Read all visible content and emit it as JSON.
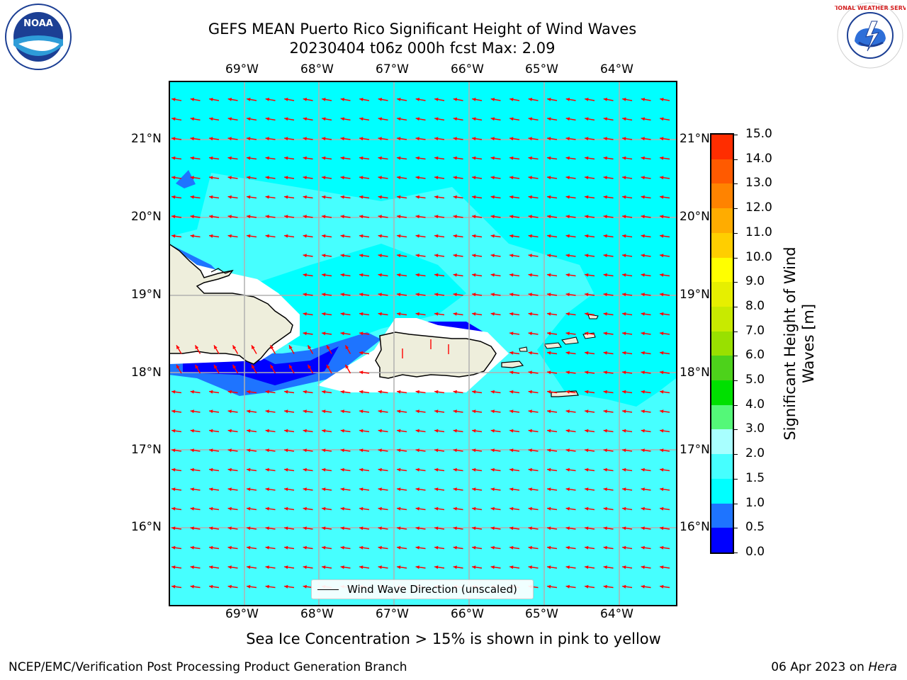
{
  "title_line1": "GEFS MEAN Puerto Rico Significant Height of Wind Waves",
  "title_line2": "20230404 t06z 000h fcst   Max: 2.09",
  "lon_labels": [
    "69°W",
    "68°W",
    "67°W",
    "66°W",
    "65°W",
    "64°W"
  ],
  "lat_labels": [
    "21°N",
    "20°N",
    "19°N",
    "18°N",
    "17°N",
    "16°N"
  ],
  "colorbar": {
    "title_line1": "Significant Height of Wind",
    "title_line2": "Waves [m]",
    "tick_labels": [
      "0.0",
      "0.5",
      "1.0",
      "1.5",
      "2.0",
      "3.0",
      "4.0",
      "5.0",
      "6.0",
      "7.0",
      "8.0",
      "9.0",
      "10.0",
      "11.0",
      "12.0",
      "13.0",
      "14.0",
      "15.0"
    ],
    "colors": [
      "#0000ff",
      "#1e74ff",
      "#00ffff",
      "#46ffff",
      "#a8ffff",
      "#54f878",
      "#00e000",
      "#4dd21b",
      "#99e000",
      "#c8ea00",
      "#e6ef00",
      "#ffff00",
      "#ffce00",
      "#ffac00",
      "#ff8300",
      "#ff5a00",
      "#ff2d00"
    ]
  },
  "legend": {
    "label": "Wind Wave Direction (unscaled)"
  },
  "note": "Sea Ice Concentration > 15% is shown in pink to yellow",
  "footer": {
    "left": "NCEP/EMC/Verification Post Processing Product Generation Branch",
    "right_prefix": "06 Apr 2023 on ",
    "right_machine": "Hera"
  },
  "logos": {
    "noaa_text": "NOAA",
    "nws_text": "NATIONAL WEATHER SERVICE"
  },
  "colors": {
    "arrow": "#ff0000",
    "land": "#eeeedc",
    "gridline": "#b0b0b0"
  }
}
